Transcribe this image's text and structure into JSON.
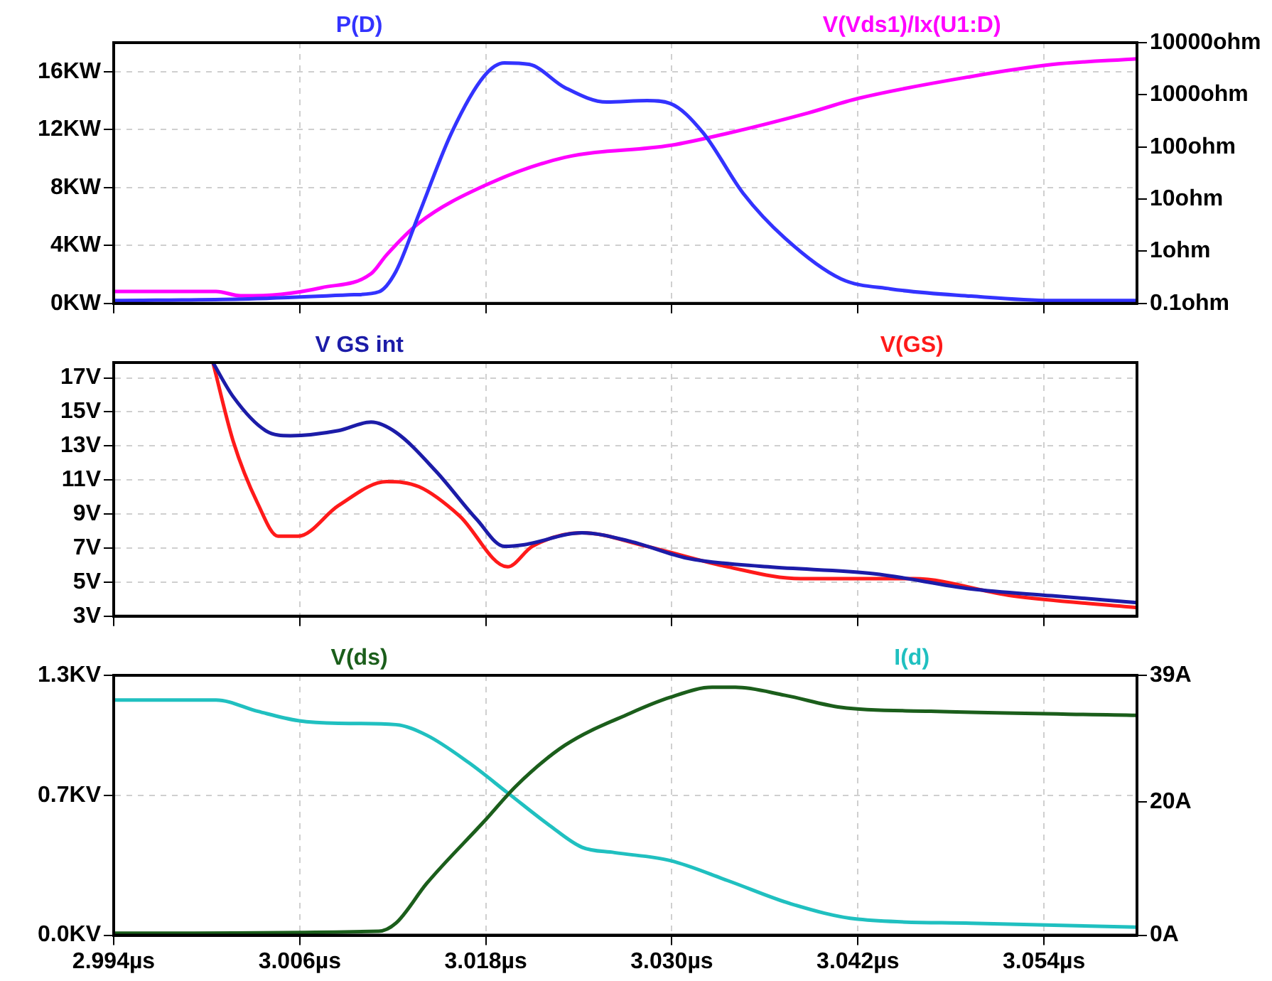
{
  "chart_data": [
    {
      "type": "line",
      "legend": false,
      "grid": true,
      "tick_labels": "y",
      "log": "y2",
      "xlim": [
        2.994,
        3.06
      ],
      "xticks": [
        {
          "value": 2.994,
          "label": null
        },
        {
          "value": 3.006,
          "label": null
        },
        {
          "value": 3.018,
          "label": null
        },
        {
          "value": 3.03,
          "label": null
        },
        {
          "value": 3.042,
          "label": null
        },
        {
          "value": 3.054,
          "label": null
        }
      ],
      "ylim": [
        0,
        18
      ],
      "yticks": [
        {
          "value": 0,
          "label": "0KW"
        },
        {
          "value": 4,
          "label": "4KW"
        },
        {
          "value": 8,
          "label": "8KW"
        },
        {
          "value": 12,
          "label": "12KW"
        },
        {
          "value": 16,
          "label": "16KW"
        }
      ],
      "y2lim": [
        0.1,
        10000
      ],
      "y2ticks": [
        {
          "value": 0.1,
          "label": "0.1ohm"
        },
        {
          "value": 1,
          "label": "1ohm"
        },
        {
          "value": 10,
          "label": "10ohm"
        },
        {
          "value": 100,
          "label": "100ohm"
        },
        {
          "value": 1000,
          "label": "1000ohm"
        },
        {
          "value": 10000,
          "label": "10000ohm"
        }
      ],
      "series": [
        {
          "name": "P(D)",
          "color": "#3333ff",
          "x": [
            2.994,
            3.0022,
            3.0095,
            3.0111,
            3.0122,
            3.0137,
            3.0158,
            3.0179,
            3.0192,
            3.0208,
            3.0231,
            3.0258,
            3.0284,
            3.0299,
            3.032,
            3.0346,
            3.0373,
            3.0409,
            3.0441,
            3.0493,
            3.0545,
            3.06
          ],
          "values": [
            0.2,
            0.3,
            0.6,
            0.8,
            2.2,
            6.2,
            11.8,
            15.7,
            16.6,
            16.5,
            14.9,
            13.9,
            14.0,
            13.8,
            11.8,
            7.6,
            4.5,
            1.7,
            1.0,
            0.5,
            0.2,
            0.2
          ]
        },
        {
          "name": "V(Vds1)/Ix(U1:D)",
          "color": "#ff00ff",
          "axis": "y2",
          "x": [
            2.994,
            3.0006,
            3.0022,
            3.0048,
            3.0074,
            3.0106,
            3.0116,
            3.0137,
            3.0179,
            3.0231,
            3.0299,
            3.0336,
            3.0388,
            3.042,
            3.0493,
            3.0545,
            3.06
          ],
          "values": [
            0.17,
            0.17,
            0.14,
            0.15,
            0.2,
            0.37,
            0.85,
            3.5,
            18,
            63,
            107,
            183,
            450,
            850,
            2240,
            3800,
            4900
          ]
        }
      ]
    },
    {
      "type": "line",
      "legend": false,
      "grid": true,
      "tick_labels": "y",
      "xlim": [
        2.994,
        3.06
      ],
      "xticks": [
        {
          "value": 2.994,
          "label": null
        },
        {
          "value": 3.006,
          "label": null
        },
        {
          "value": 3.018,
          "label": null
        },
        {
          "value": 3.03,
          "label": null
        },
        {
          "value": 3.042,
          "label": null
        },
        {
          "value": 3.054,
          "label": null
        }
      ],
      "ylim": [
        3,
        17.9
      ],
      "yticks": [
        {
          "value": 3,
          "label": "3V"
        },
        {
          "value": 5,
          "label": "5V"
        },
        {
          "value": 7,
          "label": "7V"
        },
        {
          "value": 9,
          "label": "9V"
        },
        {
          "value": 11,
          "label": "11V"
        },
        {
          "value": 13,
          "label": "13V"
        },
        {
          "value": 15,
          "label": "15V"
        },
        {
          "value": 17,
          "label": "17V"
        }
      ],
      "series": [
        {
          "name": "V GS int",
          "color": "#1c1ca8",
          "x": [
            3.0004,
            3.0017,
            3.0038,
            3.0054,
            3.0085,
            3.0106,
            3.0122,
            3.0148,
            3.0174,
            3.0192,
            3.0205,
            3.0242,
            3.0273,
            3.031,
            3.0362,
            3.043,
            3.0493,
            3.0545,
            3.06
          ],
          "values": [
            17.9,
            15.9,
            13.9,
            13.6,
            13.9,
            14.4,
            13.8,
            11.5,
            8.7,
            7.1,
            7.2,
            7.9,
            7.4,
            6.4,
            5.9,
            5.5,
            4.6,
            4.2,
            3.8
          ]
        },
        {
          "name": "V(GS)",
          "color": "#ff1a1a",
          "x": [
            3.0004,
            3.0017,
            3.0033,
            3.0046,
            3.0059,
            3.0085,
            3.0116,
            3.0137,
            3.0163,
            3.0194,
            3.021,
            3.0242,
            3.0284,
            3.0336,
            3.0383,
            3.0456,
            3.0519,
            3.06
          ],
          "values": [
            17.9,
            13.3,
            9.6,
            7.7,
            7.7,
            9.5,
            10.9,
            10.6,
            8.9,
            5.9,
            7.1,
            7.9,
            7.1,
            5.9,
            5.2,
            5.2,
            4.2,
            3.5
          ]
        }
      ]
    },
    {
      "type": "line",
      "legend": false,
      "grid": true,
      "xlim": [
        2.994,
        3.06
      ],
      "xticks": [
        {
          "value": 2.994,
          "label": "2.994µs"
        },
        {
          "value": 3.006,
          "label": "3.006µs"
        },
        {
          "value": 3.018,
          "label": "3.018µs"
        },
        {
          "value": 3.03,
          "label": "3.030µs"
        },
        {
          "value": 3.042,
          "label": "3.042µs"
        },
        {
          "value": 3.054,
          "label": "3.054µs"
        }
      ],
      "ylim": [
        0,
        1.3
      ],
      "yticks": [
        {
          "value": 0,
          "label": "0.0KV"
        },
        {
          "value": 0.7,
          "label": "0.7KV"
        },
        {
          "value": 1.3,
          "label": "1.3KV"
        }
      ],
      "y2lim": [
        0,
        39
      ],
      "y2ticks": [
        {
          "value": 0,
          "label": "0A"
        },
        {
          "value": 20,
          "label": "20A"
        },
        {
          "value": 39,
          "label": "39A"
        }
      ],
      "series": [
        {
          "name": "V(ds)",
          "color": "#1b5e1b",
          "x": [
            2.994,
            3.0111,
            3.0122,
            3.0142,
            3.0179,
            3.02,
            3.0231,
            3.0273,
            3.0299,
            3.0326,
            3.0341,
            3.0373,
            3.0409,
            3.0467,
            3.06
          ],
          "values": [
            0.01,
            0.02,
            0.06,
            0.26,
            0.57,
            0.75,
            0.95,
            1.11,
            1.19,
            1.24,
            1.24,
            1.2,
            1.14,
            1.12,
            1.1
          ]
        },
        {
          "name": "I(d)",
          "color": "#20c0c0",
          "axis": "y2",
          "x": [
            2.994,
            3.0006,
            3.0033,
            3.0059,
            3.0085,
            3.0122,
            3.0142,
            3.0169,
            3.0195,
            3.0221,
            3.0242,
            3.0263,
            3.0299,
            3.0336,
            3.0377,
            3.042,
            3.0493,
            3.06
          ],
          "values": [
            35.3,
            35.3,
            33.6,
            32.2,
            31.8,
            31.6,
            30.0,
            25.9,
            21.2,
            16.5,
            13.2,
            12.4,
            11.2,
            8.2,
            4.7,
            2.4,
            1.8,
            1.2
          ]
        }
      ]
    }
  ]
}
